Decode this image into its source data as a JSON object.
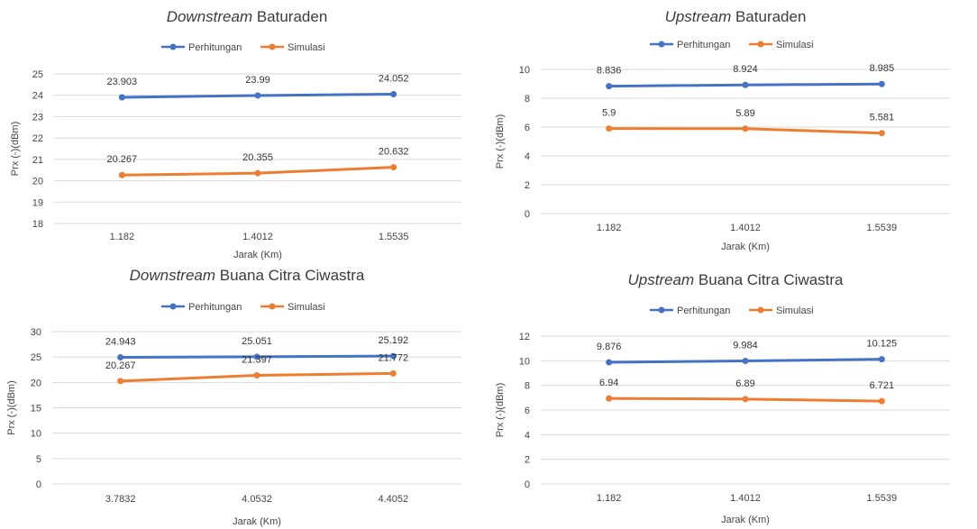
{
  "chart_data": [
    {
      "type": "line",
      "title": {
        "emphasis": "Downstream",
        "rest": " Baturaden"
      },
      "xlabel": "Jarak (Km)",
      "ylabel": "Prx (-)(dBm)",
      "categories": [
        "1.182",
        "1.4012",
        "1.5535"
      ],
      "ylim": [
        18,
        25
      ],
      "yticks": [
        18,
        19,
        20,
        21,
        22,
        23,
        24,
        25
      ],
      "grid": true,
      "legend": "top-center",
      "series": [
        {
          "name": "Perhitungan",
          "color": "#4472c4",
          "values": [
            23.903,
            23.99,
            24.052
          ],
          "labels": [
            "23.903",
            "23.99",
            "24.052"
          ]
        },
        {
          "name": "Simulasi",
          "color": "#ed7d31",
          "values": [
            20.267,
            20.355,
            20.632
          ],
          "labels": [
            "20.267",
            "20.355",
            "20.632"
          ]
        }
      ]
    },
    {
      "type": "line",
      "title": {
        "emphasis": "Upstream",
        "rest": " Baturaden"
      },
      "xlabel": "Jarak (Km)",
      "ylabel": "Prx (-)(dBm)",
      "categories": [
        "1.182",
        "1.4012",
        "1.5539"
      ],
      "ylim": [
        0,
        10
      ],
      "yticks": [
        0,
        2,
        4,
        6,
        8,
        10
      ],
      "grid": true,
      "legend": "top-center",
      "series": [
        {
          "name": "Perhitungan",
          "color": "#4472c4",
          "values": [
            8.836,
            8.924,
            8.985
          ],
          "labels": [
            "8.836",
            "8.924",
            "8.985"
          ]
        },
        {
          "name": "Simulasi",
          "color": "#ed7d31",
          "values": [
            5.9,
            5.89,
            5.581
          ],
          "labels": [
            "5.9",
            "5.89",
            "5.581"
          ]
        }
      ]
    },
    {
      "type": "line",
      "title": {
        "emphasis": "Downstream",
        "rest": " Buana Citra Ciwastra"
      },
      "xlabel": "Jarak (Km)",
      "ylabel": "Prx (-)(dBm)",
      "categories": [
        "3.7832",
        "4.0532",
        "4.4052"
      ],
      "ylim": [
        0,
        30
      ],
      "yticks": [
        0,
        5,
        10,
        15,
        20,
        25,
        30
      ],
      "grid": true,
      "legend": "top-center",
      "series": [
        {
          "name": "Perhitungan",
          "color": "#4472c4",
          "values": [
            24.943,
            25.051,
            25.192
          ],
          "labels": [
            "24.943",
            "25.051",
            "25.192"
          ]
        },
        {
          "name": "Simulasi",
          "color": "#ed7d31",
          "values": [
            20.267,
            21.397,
            21.772
          ],
          "labels": [
            "20.267",
            "21.397",
            "21.772"
          ]
        }
      ]
    },
    {
      "type": "line",
      "title": {
        "emphasis": "Upstream",
        "rest": " Buana Citra Ciwastra"
      },
      "xlabel": "Jarak (Km)",
      "ylabel": "Prx (-)(dBm)",
      "categories": [
        "1.182",
        "1.4012",
        "1.5539"
      ],
      "ylim": [
        0,
        12
      ],
      "yticks": [
        0,
        2,
        4,
        6,
        8,
        10,
        12
      ],
      "grid": true,
      "legend": "top-center",
      "series": [
        {
          "name": "Perhitungan",
          "color": "#4472c4",
          "values": [
            9.876,
            9.984,
            10.125
          ],
          "labels": [
            "9.876",
            "9.984",
            "10.125"
          ]
        },
        {
          "name": "Simulasi",
          "color": "#ed7d31",
          "values": [
            6.94,
            6.89,
            6.721
          ],
          "labels": [
            "6.94",
            "6.89",
            "6.721"
          ]
        }
      ]
    }
  ]
}
